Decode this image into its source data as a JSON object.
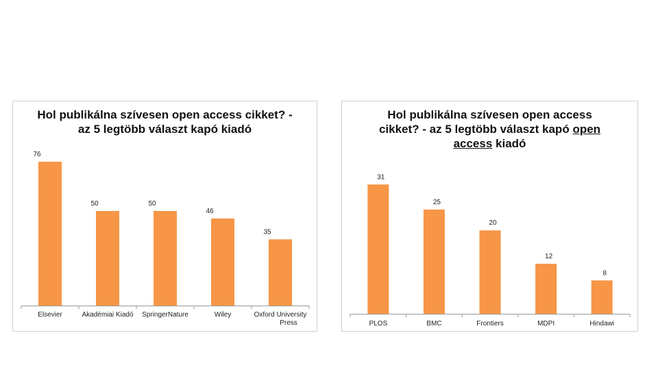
{
  "chart_data": [
    {
      "type": "bar",
      "title": "Hol publikálna szívesen open access cikket? - az 5 legtöbb választ kapó kiadó",
      "categories": [
        "Elsevier",
        "Akadémiai Kiadó",
        "SpringerNature",
        "Wiley",
        "Oxford University Press"
      ],
      "values": [
        76,
        50,
        50,
        46,
        35
      ],
      "ylim": [
        0,
        80
      ],
      "grid": false,
      "bar_color": "#f79646"
    },
    {
      "type": "bar",
      "title_parts": [
        "Hol publikálna szívesen open access cikket? - az 5 legtöbb választ kapó ",
        "open access",
        " kiadó"
      ],
      "categories": [
        "PLOS",
        "BMC",
        "Frontiers",
        "MDPI",
        "Hindawi"
      ],
      "values": [
        31,
        25,
        20,
        12,
        8
      ],
      "ylim": [
        0,
        34
      ],
      "grid": false,
      "bar_color": "#f79646"
    }
  ]
}
